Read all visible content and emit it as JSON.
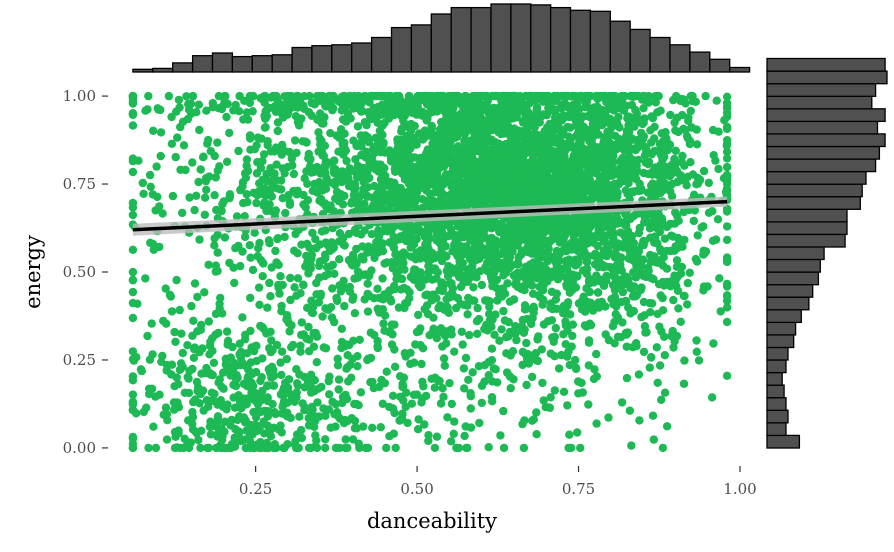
{
  "chart_data": {
    "type": "scatter",
    "title": "",
    "xlabel": "danceability",
    "ylabel": "energy",
    "xlim": [
      0.04,
      1.0
    ],
    "ylim": [
      -0.04,
      1.04
    ],
    "x_ticks": [
      0.25,
      0.5,
      0.75,
      1.0
    ],
    "x_tick_labels": [
      "0.25",
      "0.50",
      "0.75",
      "1.00"
    ],
    "y_ticks": [
      0.0,
      0.25,
      0.5,
      0.75,
      1.0
    ],
    "y_tick_labels": [
      "0.00",
      "0.25",
      "0.50",
      "0.75",
      "1.00"
    ],
    "grid": false,
    "legend": "none",
    "point_color": "#1DB954",
    "bar_color": "#505050",
    "trend_line": {
      "x": [
        0.06,
        0.98
      ],
      "y": [
        0.62,
        0.7
      ],
      "color": "#000000",
      "band_color": "#bdbdbd"
    },
    "point_clusters": [
      {
        "cx": 0.66,
        "cy": 0.72,
        "sx": 0.13,
        "sy": 0.16,
        "n": 2400
      },
      {
        "cx": 0.58,
        "cy": 0.8,
        "sx": 0.18,
        "sy": 0.12,
        "n": 700
      },
      {
        "cx": 0.35,
        "cy": 0.7,
        "sx": 0.14,
        "sy": 0.22,
        "n": 550
      },
      {
        "cx": 0.22,
        "cy": 0.12,
        "sx": 0.09,
        "sy": 0.1,
        "n": 350
      },
      {
        "cx": 0.45,
        "cy": 0.3,
        "sx": 0.18,
        "sy": 0.2,
        "n": 500
      },
      {
        "cx": 0.8,
        "cy": 0.55,
        "sx": 0.09,
        "sy": 0.2,
        "n": 450
      },
      {
        "cx": 0.5,
        "cy": 0.97,
        "sx": 0.22,
        "sy": 0.02,
        "n": 260
      }
    ],
    "marginal_x_histogram": {
      "bin_start": 0.06,
      "bin_width": 0.0308,
      "counts": [
        3,
        4,
        10,
        18,
        21,
        17,
        18,
        19,
        27,
        29,
        30,
        32,
        38,
        49,
        52,
        64,
        71,
        71,
        75,
        75,
        74,
        71,
        68,
        67,
        56,
        47,
        38,
        30,
        22,
        14,
        5
      ]
    },
    "marginal_y_histogram": {
      "bin_start": 0.0,
      "bin_width": 0.0357,
      "counts": [
        17,
        10,
        11,
        10,
        9,
        8,
        10,
        11,
        14,
        15,
        18,
        22,
        24,
        27,
        28,
        30,
        41,
        42,
        42,
        49,
        50,
        52,
        57,
        59,
        62,
        58,
        62,
        55,
        57,
        63,
        62
      ]
    }
  }
}
